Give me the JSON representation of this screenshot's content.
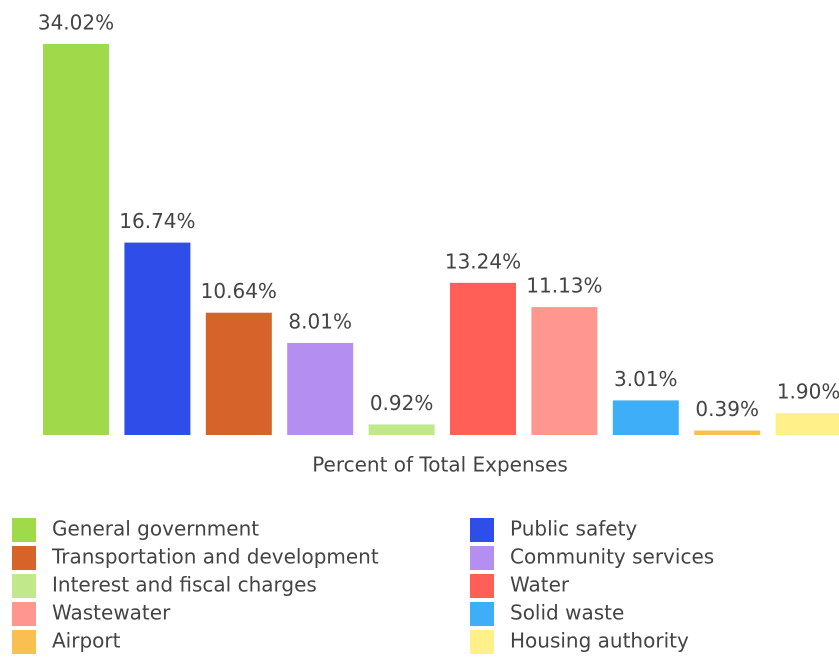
{
  "chart_data": {
    "type": "bar",
    "xlabel": "Percent of Total Expenses",
    "categories": [
      "General government",
      "Public safety",
      "Transportation and development",
      "Community services",
      "Interest and fiscal charges",
      "Water",
      "Wastewater",
      "Solid waste",
      "Airport",
      "Housing authority"
    ],
    "values": [
      34.02,
      16.74,
      10.64,
      8.01,
      0.92,
      13.24,
      11.13,
      3.01,
      0.39,
      1.9
    ],
    "value_labels": [
      "34.02%",
      "16.74%",
      "10.64%",
      "8.01%",
      "0.92%",
      "13.24%",
      "11.13%",
      "3.01%",
      "0.39%",
      "1.90%"
    ],
    "colors": [
      "#a0d94a",
      "#2f4de8",
      "#d6632a",
      "#b48ef0",
      "#c2e88c",
      "#ff5f57",
      "#ff968f",
      "#3eaef8",
      "#f8c050",
      "#fff08a"
    ]
  }
}
